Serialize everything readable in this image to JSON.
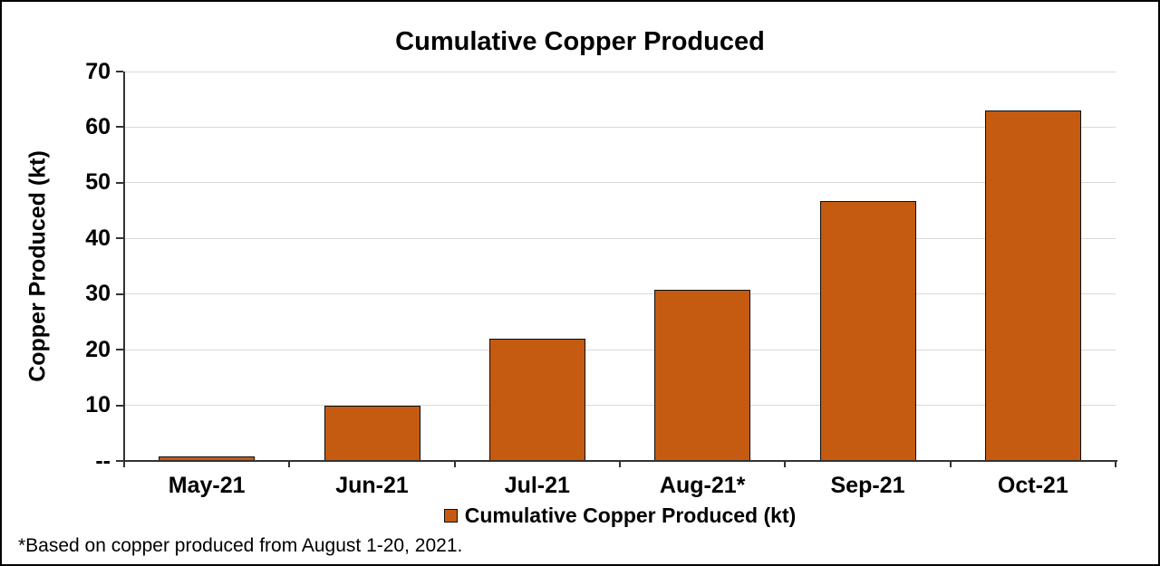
{
  "chart_data": {
    "type": "bar",
    "title": "Cumulative Copper Produced",
    "ylabel": "Copper Produced (kt)",
    "xlabel": "",
    "categories": [
      "May-21",
      "Jun-21",
      "Jul-21",
      "Aug-21*",
      "Sep-21",
      "Oct-21"
    ],
    "values": [
      0.8,
      9.9,
      22.0,
      30.8,
      46.8,
      63.0
    ],
    "series": [
      {
        "name": "Cumulative Copper Produced (kt)",
        "values": [
          0.8,
          9.9,
          22.0,
          30.8,
          46.8,
          63.0
        ]
      }
    ],
    "legend": [
      "Cumulative Copper Produced (kt)"
    ],
    "legend_position": "bottom-center",
    "ylim": [
      0,
      70
    ],
    "ytick_interval": 10,
    "yticks": [
      {
        "label": "70",
        "value": 70
      },
      {
        "label": "60",
        "value": 60
      },
      {
        "label": "50",
        "value": 50
      },
      {
        "label": "40",
        "value": 40
      },
      {
        "label": "30",
        "value": 30
      },
      {
        "label": "20",
        "value": 20
      },
      {
        "label": "10",
        "value": 10
      },
      {
        "label": "--",
        "value": 0
      }
    ],
    "grid": true,
    "footnote": "*Based on copper produced from August 1-20, 2021.",
    "colors": {
      "bar_fill": "#C55A11",
      "bar_border": "#0d0d0d",
      "gridline": "#D9D9D9",
      "axis_line": "#333333",
      "text": "#000000",
      "background": "#FFFFFF",
      "canvas_border": "#000000"
    }
  }
}
